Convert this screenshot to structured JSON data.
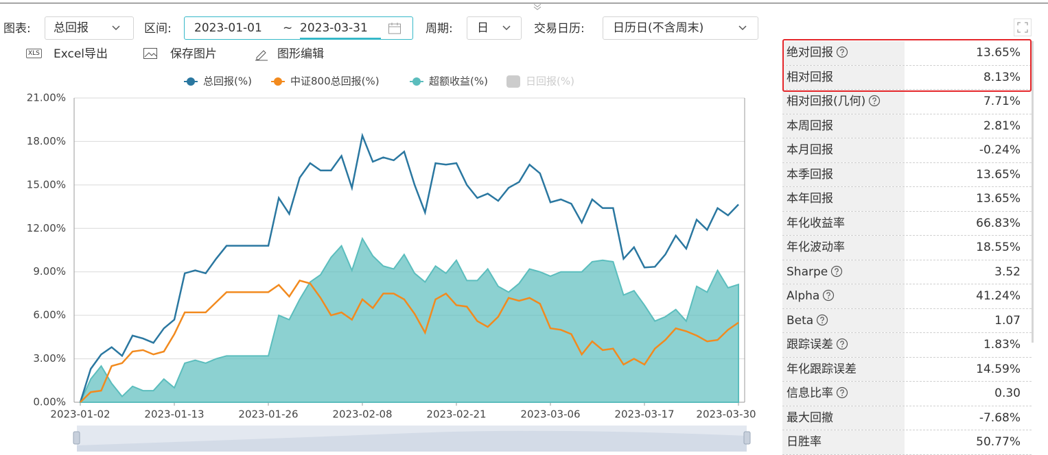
{
  "toolbar": {
    "chart_label": "图表:",
    "chart_select": "总回报",
    "range_label": "区间:",
    "range_start": "2023-01-01",
    "range_sep": "~",
    "range_end": "2023-03-31",
    "period_label": "周期:",
    "period_select": "日",
    "calendar_label": "交易日历:",
    "calendar_select": "日历日(不含周末)"
  },
  "actions": [
    {
      "icon": "XLS",
      "label": "Excel导出"
    },
    {
      "label": "保存图片"
    },
    {
      "label": "图形编辑"
    }
  ],
  "chart_data": {
    "type": "line",
    "categories": [
      "2023-01-02",
      null,
      null,
      null,
      null,
      null,
      null,
      null,
      null,
      "2023-01-13",
      null,
      null,
      null,
      null,
      null,
      null,
      null,
      null,
      "2023-01-26",
      null,
      null,
      null,
      null,
      null,
      null,
      null,
      null,
      "2023-02-08",
      null,
      null,
      null,
      null,
      null,
      null,
      null,
      null,
      "2023-02-21",
      null,
      null,
      null,
      null,
      null,
      null,
      null,
      null,
      "2023-03-06",
      null,
      null,
      null,
      null,
      null,
      null,
      null,
      null,
      "2023-03-17",
      null,
      null,
      null,
      null,
      null,
      null,
      null,
      null,
      "2023-03-30"
    ],
    "series": [
      {
        "name": "总回报(%)",
        "color": "#2a77a0",
        "style": "line",
        "values": [
          0,
          2.3,
          3.3,
          3.8,
          3.2,
          4.6,
          4.4,
          4.1,
          5.1,
          5.7,
          8.9,
          9.1,
          8.9,
          9.9,
          10.8,
          10.8,
          10.8,
          10.8,
          10.8,
          14.1,
          13.0,
          15.5,
          16.5,
          16.0,
          16.0,
          17.0,
          14.8,
          18.4,
          16.6,
          16.9,
          16.7,
          17.3,
          15.0,
          13.1,
          16.5,
          16.4,
          16.5,
          15.0,
          14.1,
          14.4,
          13.9,
          14.8,
          15.2,
          16.4,
          15.8,
          13.8,
          14.0,
          13.7,
          12.4,
          14.0,
          13.4,
          13.4,
          9.9,
          10.7,
          9.3,
          9.35,
          10.2,
          11.5,
          10.6,
          12.6,
          11.9,
          13.4,
          12.9,
          13.65
        ]
      },
      {
        "name": "中证800总回报(%)",
        "color": "#f28a1e",
        "style": "line",
        "values": [
          0,
          0.7,
          0.8,
          2.5,
          2.7,
          3.5,
          3.6,
          3.3,
          3.5,
          4.7,
          6.2,
          6.2,
          6.2,
          6.9,
          7.6,
          7.6,
          7.6,
          7.6,
          7.6,
          8.1,
          7.3,
          8.4,
          8.2,
          7.2,
          6.0,
          6.2,
          5.7,
          7.1,
          6.5,
          7.5,
          7.5,
          7.1,
          6.1,
          4.8,
          7.1,
          7.5,
          6.7,
          6.6,
          5.6,
          5.2,
          5.9,
          7.2,
          7.0,
          7.2,
          6.8,
          5.1,
          5.0,
          4.7,
          3.3,
          4.2,
          3.6,
          3.7,
          2.6,
          3.0,
          2.6,
          3.7,
          4.3,
          5.1,
          4.9,
          4.6,
          4.2,
          4.3,
          5.0,
          5.5
        ]
      },
      {
        "name": "超额收益(%)",
        "color": "#5bbdbd",
        "style": "area",
        "values": [
          0,
          1.6,
          2.5,
          1.3,
          0.4,
          1.1,
          0.8,
          0.8,
          1.6,
          1.0,
          2.7,
          2.9,
          2.7,
          3.0,
          3.2,
          3.2,
          3.2,
          3.2,
          3.2,
          6.0,
          5.7,
          7.1,
          8.3,
          8.8,
          10.0,
          10.8,
          9.1,
          11.3,
          10.1,
          9.4,
          9.2,
          10.2,
          8.9,
          8.3,
          9.4,
          8.9,
          9.8,
          8.4,
          8.4,
          9.2,
          8.0,
          7.6,
          8.2,
          9.2,
          9.0,
          8.7,
          9.0,
          9.0,
          9.0,
          9.7,
          9.8,
          9.7,
          7.4,
          7.7,
          6.7,
          5.6,
          5.9,
          6.4,
          5.6,
          8.0,
          7.6,
          9.1,
          7.9,
          8.13
        ]
      }
    ],
    "inactive_legend": [
      {
        "name": "日回报(%)",
        "color": "#cccccc"
      }
    ],
    "ylim": [
      0,
      21
    ],
    "yticks": [
      {
        "value": 0,
        "label": "0.00%"
      },
      {
        "value": 3,
        "label": "3.00%"
      },
      {
        "value": 6,
        "label": "6.00%"
      },
      {
        "value": 9,
        "label": "9.00%"
      },
      {
        "value": 12,
        "label": "12.00%"
      },
      {
        "value": 15,
        "label": "15.00%"
      },
      {
        "value": 18,
        "label": "18.00%"
      },
      {
        "value": 21,
        "label": "21.00%"
      }
    ],
    "grid": true
  },
  "metrics": [
    {
      "label": "绝对回报",
      "value": "13.65%",
      "help": true,
      "highlight": true
    },
    {
      "label": "相对回报",
      "value": "8.13%",
      "help": false,
      "highlight": true
    },
    {
      "label": "相对回报(几何)",
      "value": "7.71%",
      "help": true
    },
    {
      "label": "本周回报",
      "value": "2.81%",
      "help": false
    },
    {
      "label": "本月回报",
      "value": "-0.24%",
      "help": false
    },
    {
      "label": "本季回报",
      "value": "13.65%",
      "help": false
    },
    {
      "label": "本年回报",
      "value": "13.65%",
      "help": false
    },
    {
      "label": "年化收益率",
      "value": "66.83%",
      "help": false
    },
    {
      "label": "年化波动率",
      "value": "18.55%",
      "help": false
    },
    {
      "label": "Sharpe",
      "value": "3.52",
      "help": true
    },
    {
      "label": "Alpha",
      "value": "41.24%",
      "help": true
    },
    {
      "label": "Beta",
      "value": "1.07",
      "help": true
    },
    {
      "label": "跟踪误差",
      "value": "1.83%",
      "help": true
    },
    {
      "label": "年化跟踪误差",
      "value": "14.59%",
      "help": false
    },
    {
      "label": "信息比率",
      "value": "0.30",
      "help": true
    },
    {
      "label": "最大回撤",
      "value": "-7.68%",
      "help": false
    },
    {
      "label": "日胜率",
      "value": "50.77%",
      "help": false
    }
  ]
}
